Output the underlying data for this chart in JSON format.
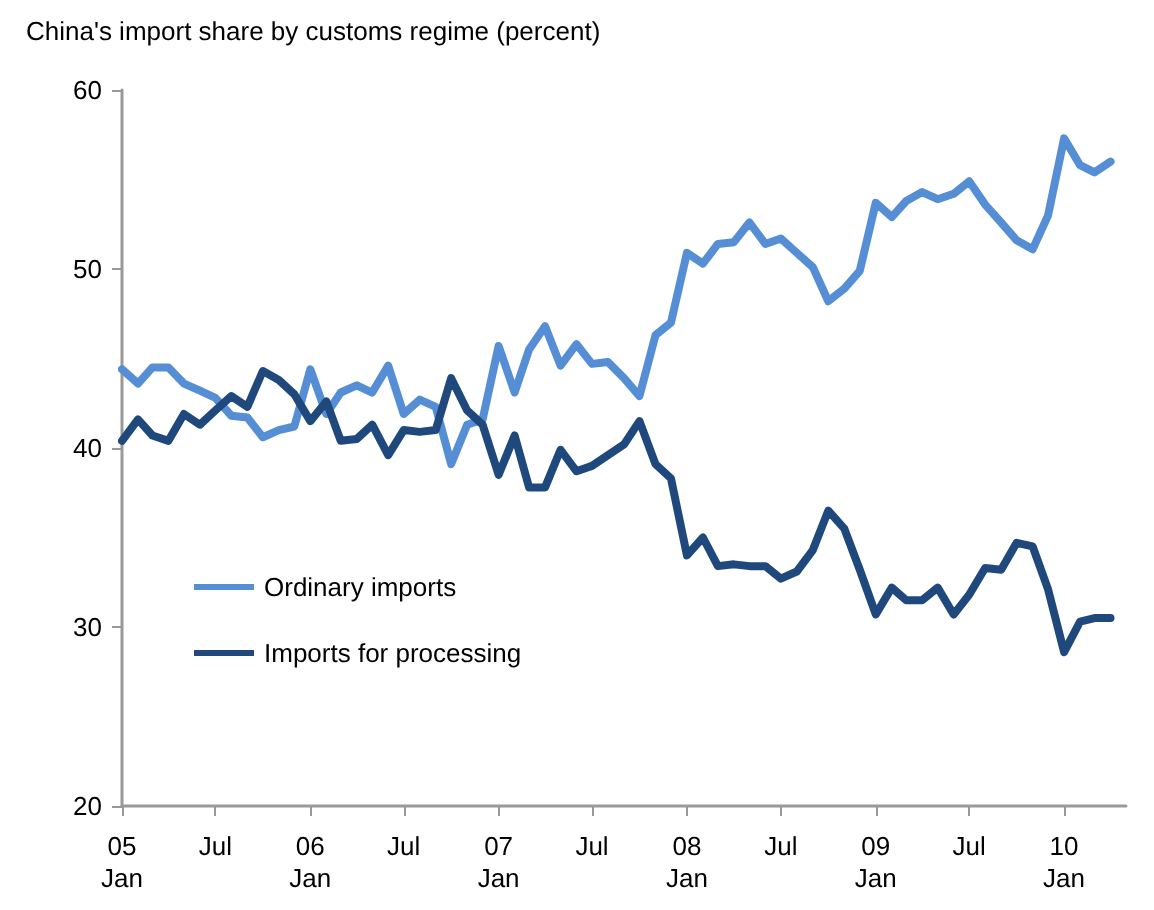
{
  "chart_data": {
    "type": "line",
    "title": "China's import share by customs regime (percent)",
    "x": [
      "2005-01",
      "2005-02",
      "2005-03",
      "2005-04",
      "2005-05",
      "2005-06",
      "2005-07",
      "2005-08",
      "2005-09",
      "2005-10",
      "2005-11",
      "2005-12",
      "2006-01",
      "2006-02",
      "2006-03",
      "2006-04",
      "2006-05",
      "2006-06",
      "2006-07",
      "2006-08",
      "2006-09",
      "2006-10",
      "2006-11",
      "2006-12",
      "2007-01",
      "2007-02",
      "2007-03",
      "2007-04",
      "2007-05",
      "2007-06",
      "2007-07",
      "2007-08",
      "2007-09",
      "2007-10",
      "2007-11",
      "2007-12",
      "2008-01",
      "2008-02",
      "2008-03",
      "2008-04",
      "2008-05",
      "2008-06",
      "2008-07",
      "2008-08",
      "2008-09",
      "2008-10",
      "2008-11",
      "2008-12",
      "2009-01",
      "2009-02",
      "2009-03",
      "2009-04",
      "2009-05",
      "2009-06",
      "2009-07",
      "2009-08",
      "2009-09",
      "2009-10",
      "2009-11",
      "2009-12",
      "2010-01",
      "2010-02",
      "2010-03",
      "2010-04"
    ],
    "series": [
      {
        "name": "Ordinary imports",
        "color": "#558ed5",
        "values": [
          44.4,
          43.6,
          44.5,
          44.5,
          43.6,
          43.2,
          42.8,
          41.8,
          41.7,
          40.6,
          41.0,
          41.2,
          44.4,
          41.9,
          43.1,
          43.5,
          43.1,
          44.6,
          41.9,
          42.7,
          42.3,
          39.1,
          41.3,
          41.6,
          45.7,
          43.1,
          45.5,
          46.8,
          44.6,
          45.8,
          44.7,
          44.8,
          43.9,
          42.9,
          46.3,
          47.0,
          50.9,
          50.3,
          51.4,
          51.5,
          52.6,
          51.4,
          51.7,
          50.9,
          50.1,
          48.2,
          48.9,
          49.9,
          53.7,
          52.9,
          53.8,
          54.3,
          53.9,
          54.2,
          54.9,
          53.6,
          52.6,
          51.6,
          51.1,
          53.0,
          57.3,
          55.8,
          55.4,
          56.0
        ]
      },
      {
        "name": "Imports for processing",
        "color": "#1f497d",
        "values": [
          40.4,
          41.6,
          40.7,
          40.4,
          41.9,
          41.3,
          42.1,
          42.9,
          42.3,
          44.3,
          43.8,
          43.0,
          41.5,
          42.6,
          40.4,
          40.5,
          41.3,
          39.6,
          41.0,
          40.9,
          41.0,
          43.9,
          42.1,
          41.3,
          38.5,
          40.7,
          37.8,
          37.8,
          39.9,
          38.7,
          39.0,
          39.6,
          40.2,
          41.5,
          39.1,
          38.3,
          34.0,
          35.0,
          33.4,
          33.5,
          33.4,
          33.4,
          32.7,
          33.1,
          34.3,
          36.5,
          35.5,
          33.2,
          30.7,
          32.2,
          31.5,
          31.5,
          32.2,
          30.7,
          31.8,
          33.3,
          33.2,
          34.7,
          34.5,
          32.1,
          28.6,
          30.3,
          30.5,
          30.5
        ]
      }
    ],
    "xlim": [
      "2005-01",
      "2010-05"
    ],
    "xticks": [
      {
        "value": "2005-01",
        "label": "05\nJan"
      },
      {
        "value": "2005-07",
        "label": "Jul"
      },
      {
        "value": "2006-01",
        "label": "06\nJan"
      },
      {
        "value": "2006-07",
        "label": "Jul"
      },
      {
        "value": "2007-01",
        "label": "07\nJan"
      },
      {
        "value": "2007-07",
        "label": "Jul"
      },
      {
        "value": "2008-01",
        "label": "08\nJan"
      },
      {
        "value": "2008-07",
        "label": "Jul"
      },
      {
        "value": "2009-01",
        "label": "09\nJan"
      },
      {
        "value": "2009-07",
        "label": "Jul"
      },
      {
        "value": "2010-01",
        "label": "10\nJan"
      }
    ],
    "ylim": [
      20,
      60
    ],
    "yticks": [
      20,
      30,
      40,
      50,
      60
    ],
    "grid": false,
    "legend": "bottom left",
    "marker": "none",
    "line_style": "solid"
  }
}
